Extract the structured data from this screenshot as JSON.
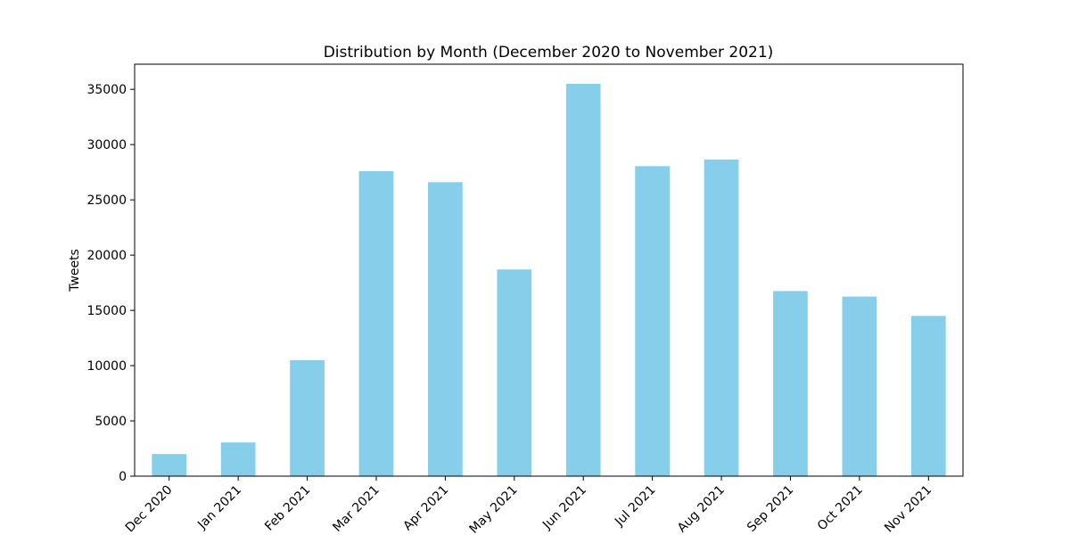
{
  "chart_data": {
    "type": "bar",
    "title": "Distribution by Month (December 2020 to November 2021)",
    "xlabel": "",
    "ylabel": "Tweets",
    "categories": [
      "Dec 2020",
      "Jan 2021",
      "Feb 2021",
      "Mar 2021",
      "Apr 2021",
      "May 2021",
      "Jun 2021",
      "Jul 2021",
      "Aug 2021",
      "Sep 2021",
      "Oct 2021",
      "Nov 2021"
    ],
    "values": [
      2000,
      3050,
      10500,
      27600,
      26600,
      18700,
      35500,
      28050,
      28650,
      16750,
      16250,
      14500
    ],
    "yticks": [
      0,
      5000,
      10000,
      15000,
      20000,
      25000,
      30000,
      35000
    ],
    "ylim": [
      0,
      37275
    ],
    "grid": false,
    "legend": "none",
    "bar_color": "#87ceeb"
  }
}
